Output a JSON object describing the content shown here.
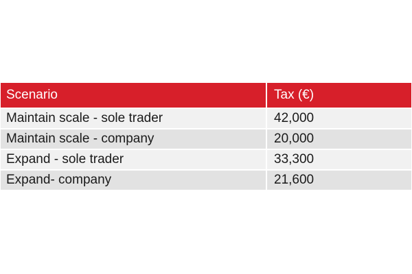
{
  "table": {
    "headers": [
      "Scenario",
      "Tax (€)"
    ],
    "rows": [
      {
        "scenario": "Maintain scale - sole trader",
        "tax": "42,000"
      },
      {
        "scenario": "Maintain scale - company",
        "tax": "20,000"
      },
      {
        "scenario": "Expand - sole trader",
        "tax": "33,300"
      },
      {
        "scenario": "Expand- company",
        "tax": "21,600"
      }
    ]
  },
  "colors": {
    "header_background": "#d71f2a",
    "header_text": "#ffffff",
    "row_light": "#f1f1f1",
    "row_dark": "#e2e2e2"
  }
}
